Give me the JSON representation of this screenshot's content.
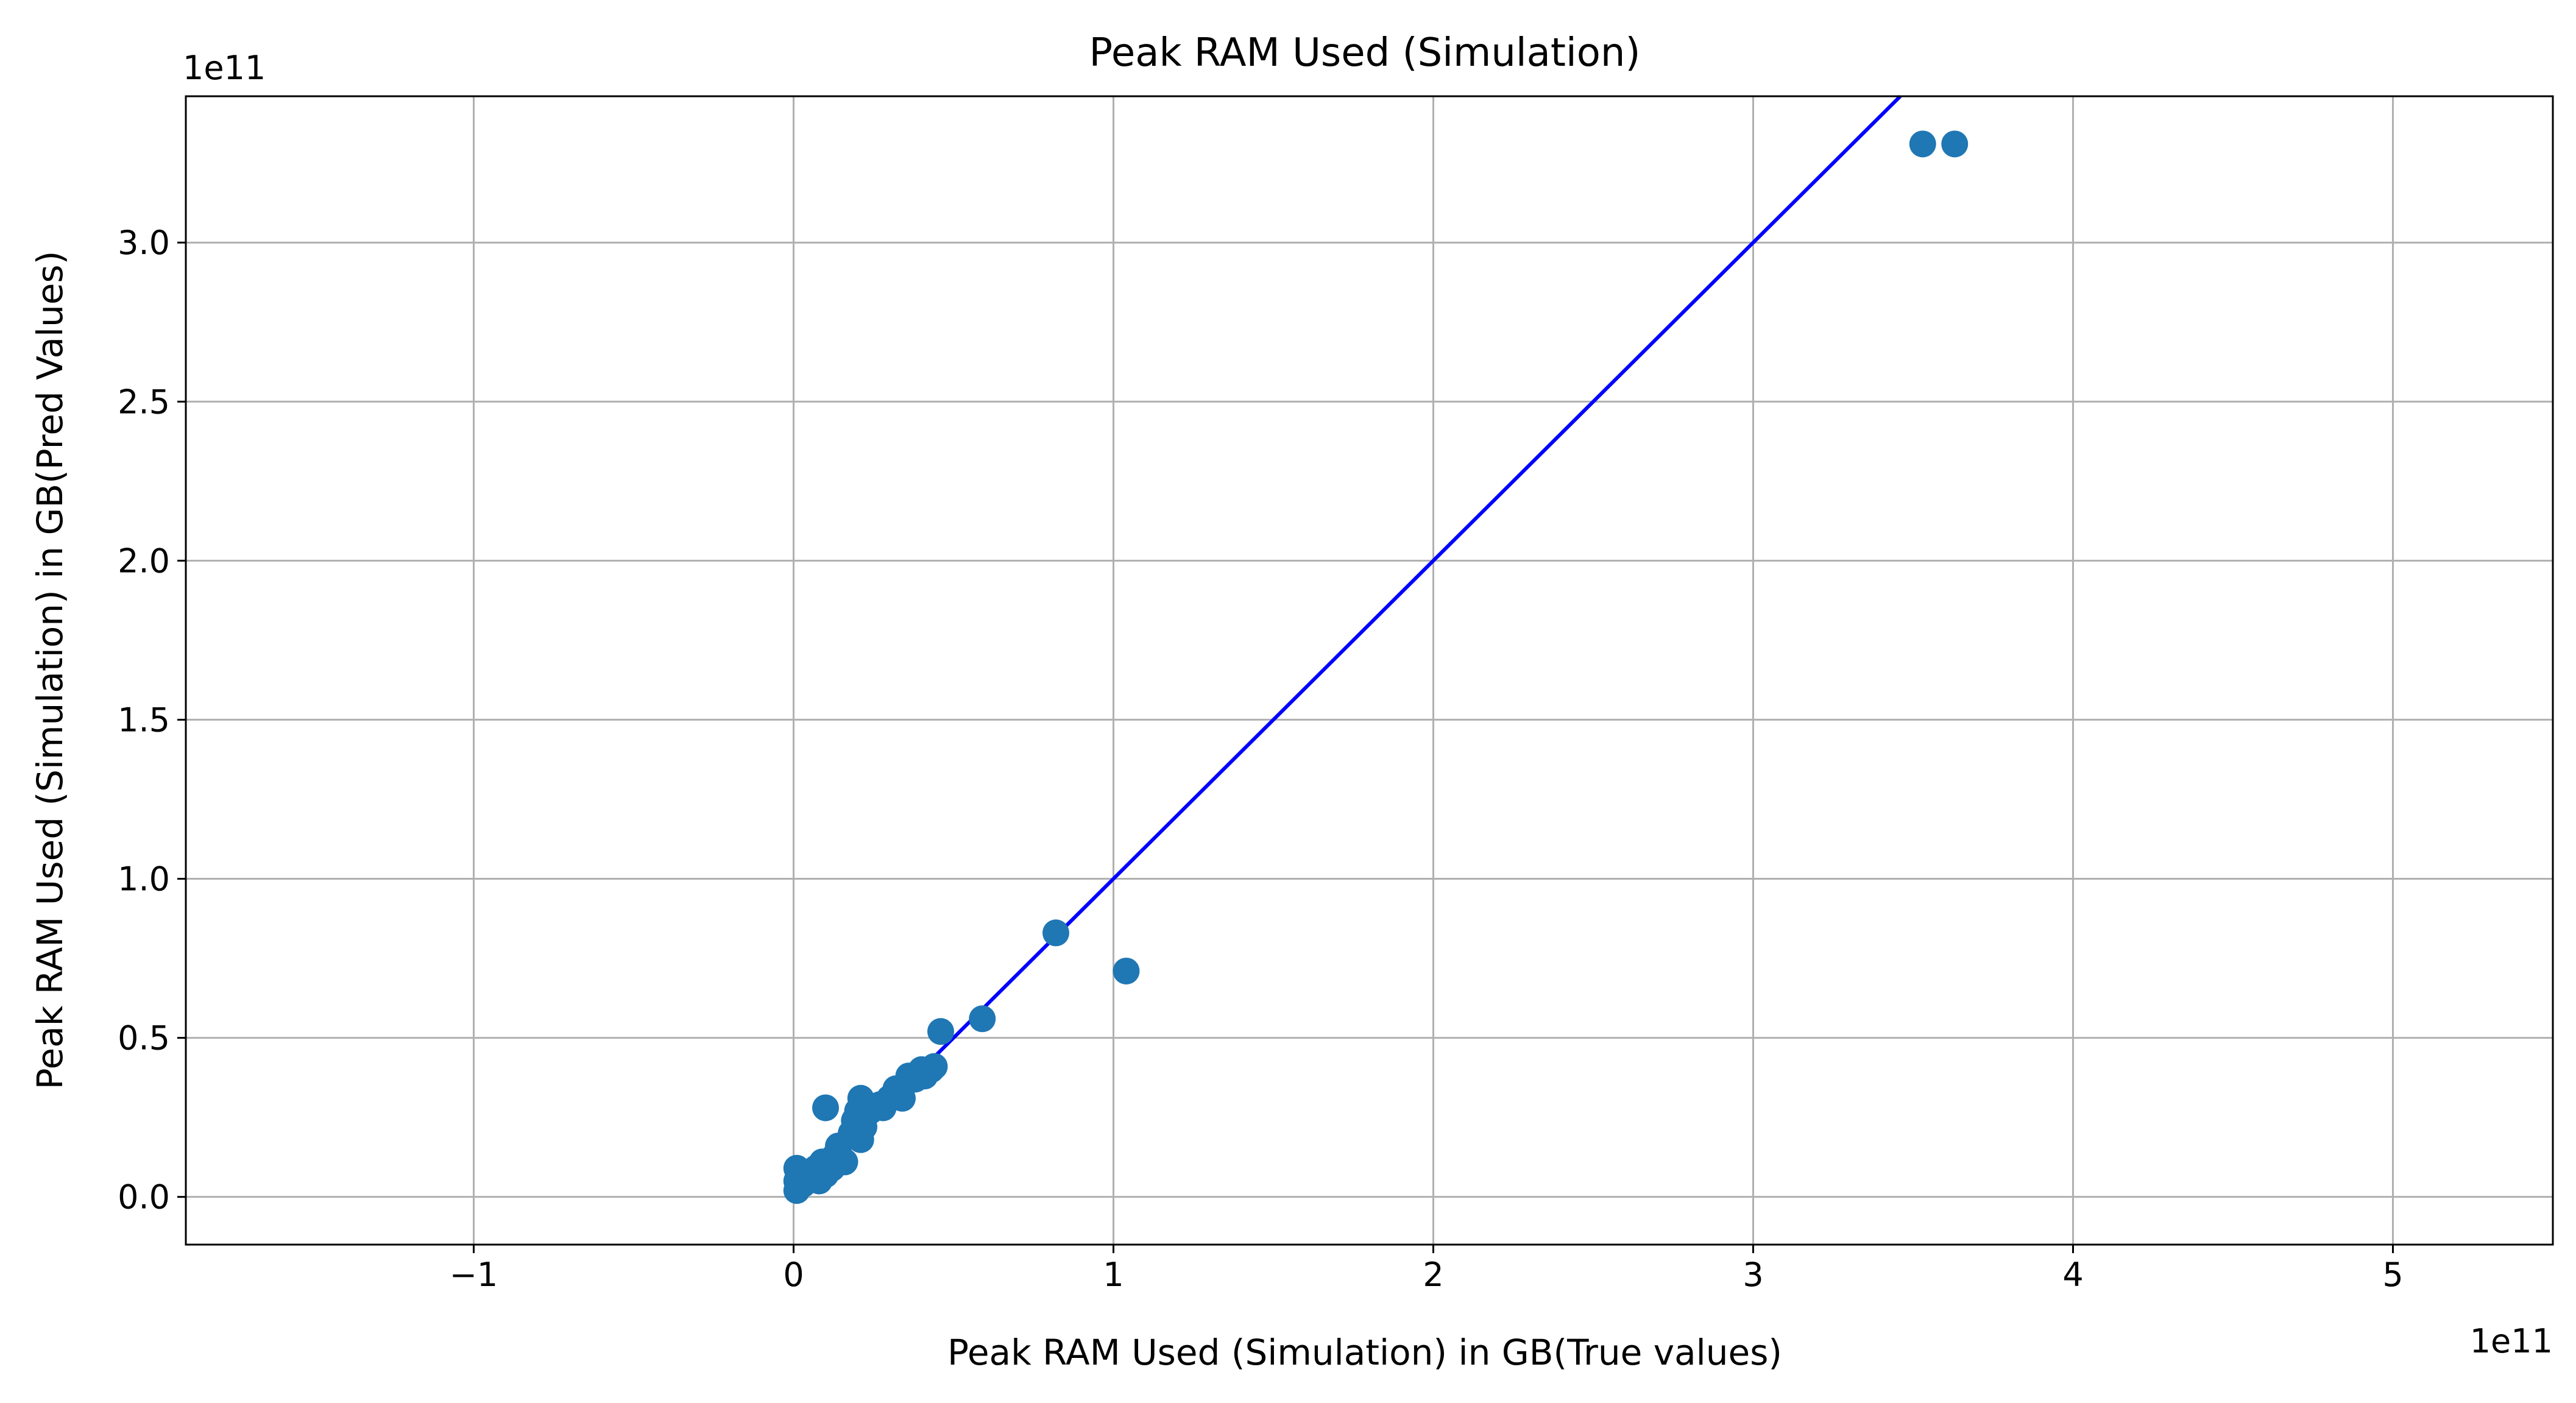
{
  "chart_data": {
    "type": "scatter",
    "title": "Peak RAM Used (Simulation)",
    "xlabel": "Peak RAM Used (Simulation) in GB(True values)",
    "ylabel": "Peak RAM Used (Simulation) in GB(Pred Values)",
    "x_offset_label": "1e11",
    "y_offset_label": "1e11",
    "scale": 100000000000.0,
    "xlim": [
      -1.9,
      5.5
    ],
    "ylim": [
      -0.15,
      3.46
    ],
    "xticks": [
      -1,
      0,
      1,
      2,
      3,
      4,
      5
    ],
    "xtick_labels": [
      "−1",
      "0",
      "1",
      "2",
      "3",
      "4",
      "5"
    ],
    "yticks": [
      0.0,
      0.5,
      1.0,
      1.5,
      2.0,
      2.5,
      3.0
    ],
    "ytick_labels": [
      "0.0",
      "0.5",
      "1.0",
      "1.5",
      "2.0",
      "2.5",
      "3.0"
    ],
    "grid": true,
    "point_color": "#1f77b4",
    "line_color": "#0000ff",
    "reference_line": {
      "x": [
        0,
        3.46
      ],
      "y": [
        0,
        3.46
      ]
    },
    "points": [
      {
        "x": 0.01,
        "y": 0.02
      },
      {
        "x": 0.01,
        "y": 0.05
      },
      {
        "x": 0.01,
        "y": 0.09
      },
      {
        "x": 0.03,
        "y": 0.04
      },
      {
        "x": 0.04,
        "y": 0.07
      },
      {
        "x": 0.06,
        "y": 0.06
      },
      {
        "x": 0.07,
        "y": 0.09
      },
      {
        "x": 0.08,
        "y": 0.05
      },
      {
        "x": 0.09,
        "y": 0.11
      },
      {
        "x": 0.1,
        "y": 0.07
      },
      {
        "x": 0.1,
        "y": 0.28
      },
      {
        "x": 0.12,
        "y": 0.09
      },
      {
        "x": 0.13,
        "y": 0.13
      },
      {
        "x": 0.14,
        "y": 0.16
      },
      {
        "x": 0.15,
        "y": 0.12
      },
      {
        "x": 0.16,
        "y": 0.11
      },
      {
        "x": 0.18,
        "y": 0.2
      },
      {
        "x": 0.19,
        "y": 0.24
      },
      {
        "x": 0.2,
        "y": 0.27
      },
      {
        "x": 0.21,
        "y": 0.31
      },
      {
        "x": 0.21,
        "y": 0.18
      },
      {
        "x": 0.22,
        "y": 0.22
      },
      {
        "x": 0.24,
        "y": 0.27
      },
      {
        "x": 0.27,
        "y": 0.29
      },
      {
        "x": 0.28,
        "y": 0.28
      },
      {
        "x": 0.3,
        "y": 0.31
      },
      {
        "x": 0.32,
        "y": 0.34
      },
      {
        "x": 0.34,
        "y": 0.31
      },
      {
        "x": 0.36,
        "y": 0.38
      },
      {
        "x": 0.38,
        "y": 0.37
      },
      {
        "x": 0.4,
        "y": 0.4
      },
      {
        "x": 0.41,
        "y": 0.38
      },
      {
        "x": 0.43,
        "y": 0.4
      },
      {
        "x": 0.44,
        "y": 0.41
      },
      {
        "x": 0.46,
        "y": 0.52
      },
      {
        "x": 0.59,
        "y": 0.56
      },
      {
        "x": 0.82,
        "y": 0.83
      },
      {
        "x": 1.04,
        "y": 0.71
      },
      {
        "x": 3.53,
        "y": 3.31
      },
      {
        "x": 3.63,
        "y": 3.31
      }
    ]
  }
}
